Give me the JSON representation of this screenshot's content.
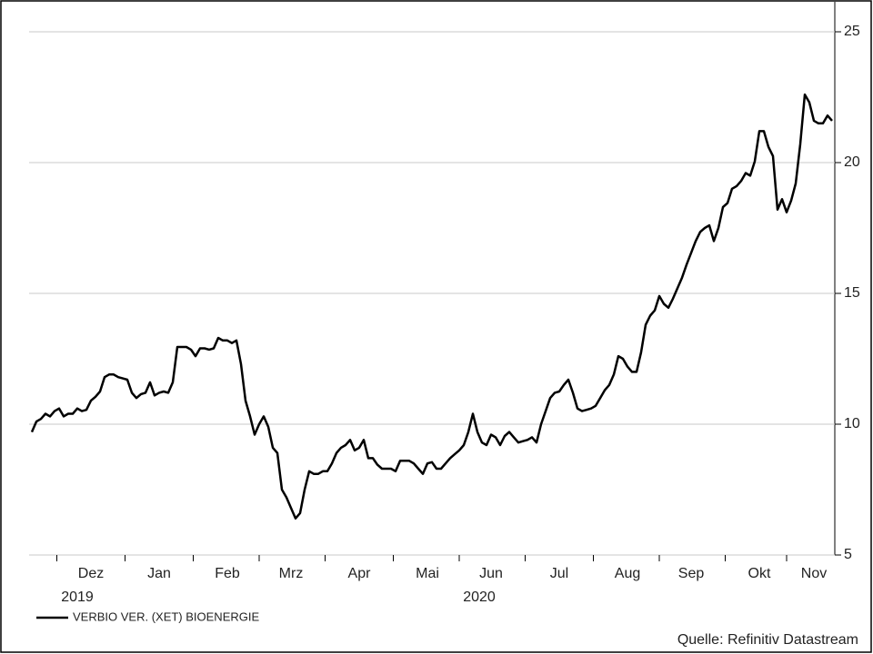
{
  "chart_data": {
    "type": "line",
    "categories": [
      null,
      null,
      null,
      null,
      null,
      null,
      null,
      null,
      null,
      null,
      null,
      null,
      null,
      "Dez",
      null,
      null,
      null,
      null,
      null,
      null,
      null,
      null,
      null,
      null,
      null,
      null,
      null,
      null,
      "Jan",
      null,
      null,
      null,
      null,
      null,
      null,
      null,
      null,
      null,
      null,
      null,
      null,
      null,
      null,
      "Feb",
      null,
      null,
      null,
      null,
      null,
      null,
      null,
      null,
      null,
      null,
      null,
      null,
      null,
      "Mrz",
      null,
      null,
      null,
      null,
      null,
      null,
      null,
      null,
      null,
      null,
      null,
      null,
      null,
      null,
      "Apr",
      null,
      null,
      null,
      null,
      null,
      null,
      null,
      null,
      null,
      null,
      null,
      null,
      null,
      null,
      "Mai",
      null,
      null,
      null,
      null,
      null,
      null,
      null,
      null,
      null,
      null,
      null,
      null,
      null,
      "Jun",
      null,
      null,
      null,
      null,
      null,
      null,
      null,
      null,
      null,
      null,
      null,
      null,
      null,
      null,
      "Jul",
      null,
      null,
      null,
      null,
      null,
      null,
      null,
      null,
      null,
      null,
      null,
      null,
      null,
      null,
      "Aug",
      null,
      null,
      null,
      null,
      null,
      null,
      null,
      null,
      null,
      null,
      null,
      null,
      null,
      "Sep",
      null,
      null,
      null,
      null,
      null,
      null,
      null,
      null,
      null,
      null,
      null,
      null,
      null,
      null,
      "Okt",
      null,
      null,
      null,
      null,
      null,
      null,
      null,
      null,
      null,
      null,
      null,
      "Nov",
      null,
      null,
      null,
      null
    ],
    "series": [
      {
        "name": "VERBIO VER. (XET) BIOENERGIE",
        "color": "#000000",
        "values": [
          9.7,
          10.1,
          10.2,
          10.4,
          10.3,
          10.5,
          10.6,
          10.3,
          10.4,
          10.4,
          10.6,
          10.5,
          10.55,
          10.9,
          11.05,
          11.25,
          11.8,
          11.9,
          11.9,
          11.8,
          11.75,
          11.7,
          11.2,
          11.0,
          11.15,
          11.2,
          11.6,
          11.1,
          11.2,
          11.25,
          11.2,
          11.6,
          12.95,
          12.95,
          12.95,
          12.85,
          12.6,
          12.9,
          12.9,
          12.85,
          12.9,
          13.3,
          13.2,
          13.2,
          13.1,
          13.2,
          12.3,
          10.9,
          10.3,
          9.6,
          10.0,
          10.3,
          9.9,
          9.1,
          8.9,
          7.5,
          7.2,
          6.8,
          6.4,
          6.6,
          7.5,
          8.2,
          8.1,
          8.1,
          8.2,
          8.2,
          8.5,
          8.9,
          9.1,
          9.2,
          9.4,
          9.0,
          9.1,
          9.4,
          8.7,
          8.7,
          8.45,
          8.3,
          8.3,
          8.3,
          8.2,
          8.6,
          8.6,
          8.6,
          8.5,
          8.3,
          8.1,
          8.5,
          8.55,
          8.3,
          8.3,
          8.5,
          8.7,
          8.85,
          9.0,
          9.2,
          9.7,
          10.4,
          9.7,
          9.3,
          9.2,
          9.6,
          9.5,
          9.2,
          9.55,
          9.7,
          9.5,
          9.3,
          9.35,
          9.4,
          9.5,
          9.3,
          10.0,
          10.5,
          11.0,
          11.2,
          11.25,
          11.5,
          11.7,
          11.2,
          10.6,
          10.5,
          10.55,
          10.6,
          10.7,
          11.0,
          11.3,
          11.5,
          11.9,
          12.6,
          12.5,
          12.2,
          12.0,
          12.0,
          12.75,
          13.8,
          14.15,
          14.35,
          14.9,
          14.6,
          14.45,
          14.8,
          15.2,
          15.6,
          16.1,
          16.55,
          17.0,
          17.35,
          17.5,
          17.6,
          17.0,
          17.5,
          18.3,
          18.45,
          19.0,
          19.1,
          19.3,
          19.6,
          19.5,
          20.05,
          21.2,
          21.2,
          20.6,
          20.25,
          18.2,
          18.6,
          18.1,
          18.55,
          19.2,
          20.7,
          22.6,
          22.3,
          21.6,
          21.5,
          21.5,
          21.8,
          21.6
        ]
      }
    ],
    "ylim": [
      5,
      25
    ],
    "yticks": [
      5,
      10,
      15,
      20,
      25
    ],
    "grid": true,
    "year_labels": [
      "2019",
      "2020"
    ],
    "source": "Quelle: Refinitiv Datastream"
  }
}
